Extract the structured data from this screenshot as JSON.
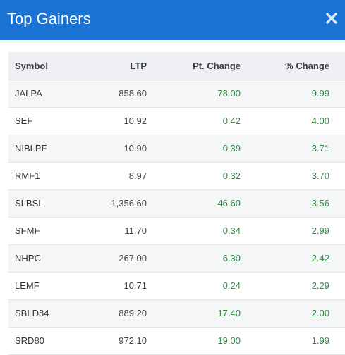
{
  "modal": {
    "title": "Top Gainers",
    "close_icon": "close-icon",
    "header_color": "#1a73d3"
  },
  "table": {
    "columns": {
      "symbol": "Symbol",
      "ltp": "LTP",
      "pt_change": "Pt. Change",
      "pct_change": "% Change"
    },
    "positive_color": "#2e8b3e",
    "rows": [
      {
        "symbol": "JALPA",
        "ltp": "858.60",
        "pt_change": "78.00",
        "pct_change": "9.99"
      },
      {
        "symbol": "SEF",
        "ltp": "10.92",
        "pt_change": "0.42",
        "pct_change": "4.00"
      },
      {
        "symbol": "NIBLPF",
        "ltp": "10.90",
        "pt_change": "0.39",
        "pct_change": "3.71"
      },
      {
        "symbol": "RMF1",
        "ltp": "8.97",
        "pt_change": "0.32",
        "pct_change": "3.70"
      },
      {
        "symbol": "SLBSL",
        "ltp": "1,356.60",
        "pt_change": "46.60",
        "pct_change": "3.56"
      },
      {
        "symbol": "SFMF",
        "ltp": "11.70",
        "pt_change": "0.34",
        "pct_change": "2.99"
      },
      {
        "symbol": "NHPC",
        "ltp": "267.00",
        "pt_change": "6.30",
        "pct_change": "2.42"
      },
      {
        "symbol": "LEMF",
        "ltp": "10.71",
        "pt_change": "0.24",
        "pct_change": "2.29"
      },
      {
        "symbol": "SBLD84",
        "ltp": "889.20",
        "pt_change": "17.40",
        "pct_change": "2.00"
      },
      {
        "symbol": "SRD80",
        "ltp": "972.10",
        "pt_change": "19.00",
        "pct_change": "1.99"
      }
    ]
  }
}
